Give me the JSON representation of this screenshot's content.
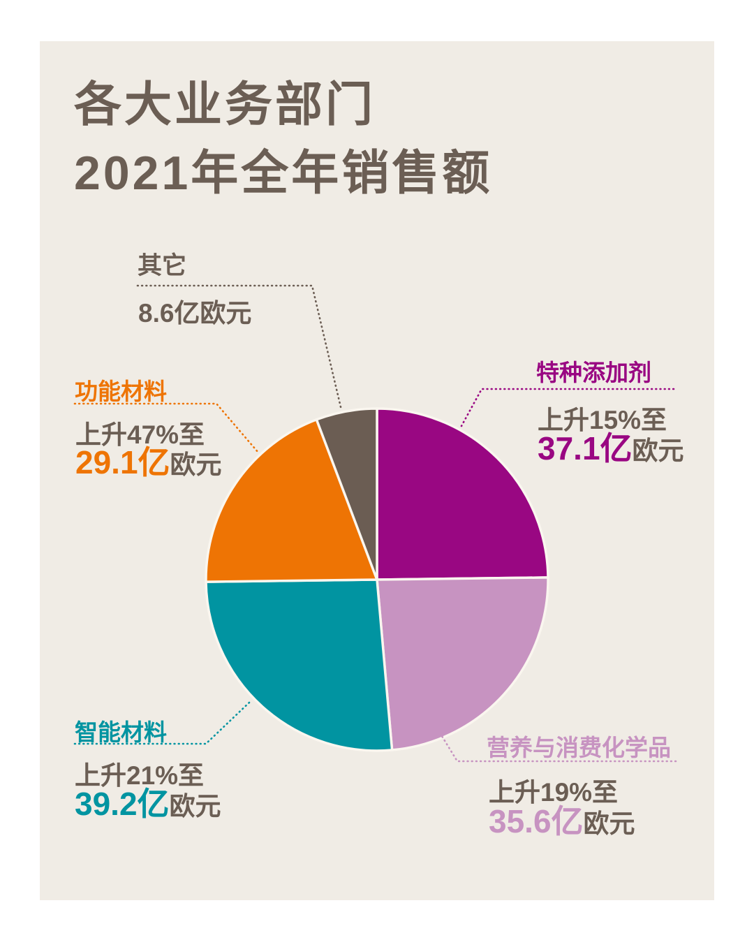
{
  "page": {
    "background": "#FFFFFF",
    "card_background": "#F0ECE5",
    "text_color": "#6B5E54"
  },
  "title": {
    "line1": "各大业务部门",
    "line2": "2021年全年销售额",
    "color": "#6B5E54"
  },
  "chart_data": {
    "type": "pie",
    "title": "各大业务部门 2021年全年销售额",
    "unit": "亿欧元",
    "start_angle_deg": 0,
    "clockwise": true,
    "legend_position": "around",
    "segments": [
      {
        "id": "specialty-additives",
        "name": "特种添加剂",
        "value": 37.1,
        "change_percent": 15,
        "change_text": "上升15%至",
        "amount_text": "37.1亿",
        "unit_text": "欧元",
        "color": "#990782"
      },
      {
        "id": "nutrition-consumer-chemicals",
        "name": "营养与消费化学品",
        "value": 35.6,
        "change_percent": 19,
        "change_text": "上升19%至",
        "amount_text": "35.6亿",
        "unit_text": "欧元",
        "color": "#C793C1"
      },
      {
        "id": "smart-materials",
        "name": "智能材料",
        "value": 39.2,
        "change_percent": 21,
        "change_text": "上升21%至",
        "amount_text": "39.2亿",
        "unit_text": "欧元",
        "color": "#0194A1"
      },
      {
        "id": "functional-materials",
        "name": "功能材料",
        "value": 29.1,
        "change_percent": 47,
        "change_text": "上升47%至",
        "amount_text": "29.1亿",
        "unit_text": "欧元",
        "color": "#EE7404"
      },
      {
        "id": "other",
        "name": "其它",
        "value": 8.6,
        "value_text": "8.6亿欧元",
        "color": "#6B5D53"
      }
    ]
  }
}
